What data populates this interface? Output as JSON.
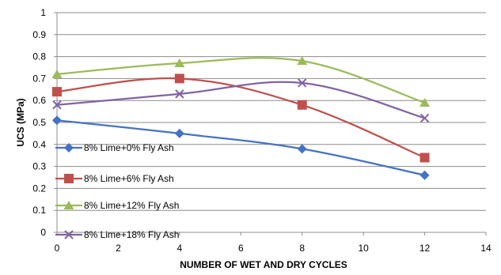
{
  "chart_data": {
    "type": "line",
    "title": "",
    "xlabel": "NUMBER OF WET AND DRY CYCLES",
    "ylabel": "UCS (MPa)",
    "xlim": [
      0,
      14
    ],
    "ylim": [
      0,
      1
    ],
    "x_ticks": [
      0,
      2,
      4,
      6,
      8,
      10,
      12,
      14
    ],
    "y_ticks": [
      0,
      0.1,
      0.2,
      0.3,
      0.4,
      0.5,
      0.6,
      0.7,
      0.8,
      0.9,
      1
    ],
    "x_tick_labels": [
      "0",
      "2",
      "4",
      "6",
      "8",
      "10",
      "12",
      "14"
    ],
    "y_tick_labels": [
      "0",
      "0.1",
      "0.2",
      "0.3",
      "0.4",
      "0.5",
      "0.6",
      "0.7",
      "0.8",
      "0.9",
      "1"
    ],
    "grid": "horizontal",
    "legend_position": "inside-left",
    "line_style": "smooth",
    "series": [
      {
        "name": "8% Lime+0% Fly Ash",
        "color": "#4472C4",
        "marker": "diamond",
        "x": [
          0,
          4,
          8,
          12
        ],
        "y": [
          0.51,
          0.45,
          0.38,
          0.26
        ]
      },
      {
        "name": "8% Lime+6% Fly Ash",
        "color": "#C0504D",
        "marker": "square",
        "x": [
          0,
          4,
          8,
          12
        ],
        "y": [
          0.64,
          0.7,
          0.58,
          0.34
        ]
      },
      {
        "name": "8% Lime+12% Fly Ash",
        "color": "#9BBB59",
        "marker": "triangle",
        "x": [
          0,
          4,
          8,
          12
        ],
        "y": [
          0.72,
          0.77,
          0.78,
          0.59
        ]
      },
      {
        "name": "8% Lime+18% Fly Ash",
        "color": "#8064A2",
        "marker": "x",
        "x": [
          0,
          4,
          8,
          12
        ],
        "y": [
          0.58,
          0.63,
          0.68,
          0.52
        ]
      }
    ]
  }
}
